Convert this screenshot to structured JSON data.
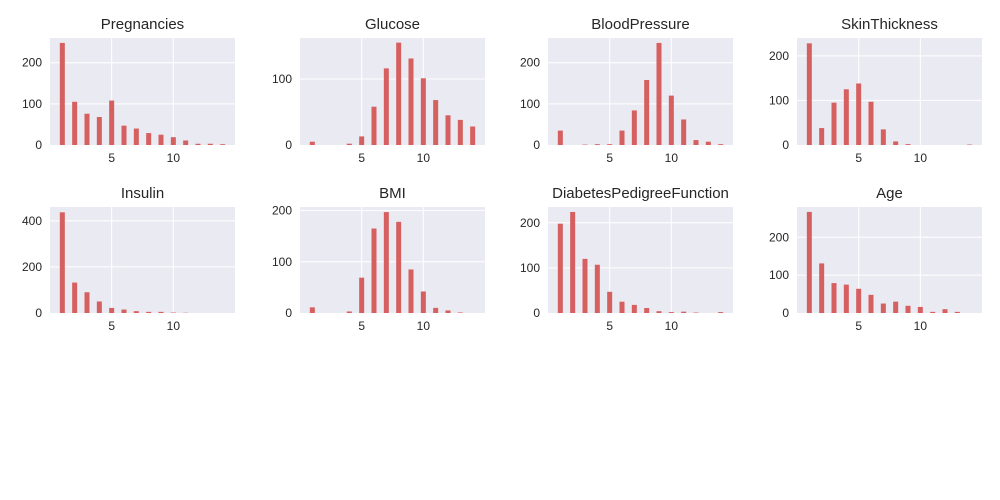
{
  "chart_data": [
    {
      "type": "bar",
      "title": "Pregnancies",
      "x": [
        1,
        2,
        3,
        4,
        5,
        6,
        7,
        8,
        9,
        10,
        11,
        12,
        13,
        14
      ],
      "values": [
        248,
        105,
        76,
        68,
        108,
        47,
        40,
        29,
        25,
        19,
        11,
        3,
        3,
        2
      ],
      "xlim": [
        0,
        15
      ],
      "ylim": [
        0,
        260
      ],
      "xticks": [
        5,
        10
      ],
      "yticks": [
        0,
        100,
        200
      ],
      "grid": true,
      "color": "#d65f5f"
    },
    {
      "type": "bar",
      "title": "Glucose",
      "x": [
        1,
        2,
        3,
        4,
        5,
        6,
        7,
        8,
        9,
        10,
        11,
        12,
        13,
        14
      ],
      "values": [
        5,
        0,
        0,
        2,
        13,
        58,
        116,
        155,
        131,
        101,
        68,
        45,
        38,
        28
      ],
      "xlim": [
        0,
        15
      ],
      "ylim": [
        0,
        162
      ],
      "xticks": [
        5,
        10
      ],
      "yticks": [
        0,
        100
      ],
      "grid": true,
      "color": "#d65f5f"
    },
    {
      "type": "bar",
      "title": "BloodPressure",
      "x": [
        1,
        2,
        3,
        4,
        5,
        6,
        7,
        8,
        9,
        10,
        11,
        12,
        13,
        14
      ],
      "values": [
        35,
        0,
        1,
        2,
        2,
        35,
        84,
        158,
        248,
        120,
        62,
        12,
        8,
        2
      ],
      "xlim": [
        0,
        15
      ],
      "ylim": [
        0,
        260
      ],
      "xticks": [
        5,
        10
      ],
      "yticks": [
        0,
        100,
        200
      ],
      "grid": true,
      "color": "#d65f5f"
    },
    {
      "type": "bar",
      "title": "SkinThickness",
      "x": [
        1,
        2,
        3,
        4,
        5,
        6,
        7,
        8,
        9,
        10,
        11,
        12,
        13,
        14
      ],
      "values": [
        228,
        38,
        95,
        125,
        138,
        97,
        35,
        8,
        2,
        0,
        0,
        0,
        0,
        1
      ],
      "xlim": [
        0,
        15
      ],
      "ylim": [
        0,
        240
      ],
      "xticks": [
        5,
        10
      ],
      "yticks": [
        0,
        100,
        200
      ],
      "grid": true,
      "color": "#d65f5f"
    },
    {
      "type": "bar",
      "title": "Insulin",
      "x": [
        1,
        2,
        3,
        4,
        5,
        6,
        7,
        8,
        9,
        10,
        11,
        12,
        13,
        14
      ],
      "values": [
        437,
        132,
        90,
        50,
        22,
        15,
        8,
        5,
        5,
        2,
        1,
        0,
        0,
        0
      ],
      "xlim": [
        0,
        15
      ],
      "ylim": [
        0,
        460
      ],
      "xticks": [
        5,
        10
      ],
      "yticks": [
        0,
        200,
        400
      ],
      "grid": true,
      "color": "#d65f5f"
    },
    {
      "type": "bar",
      "title": "BMI",
      "x": [
        1,
        2,
        3,
        4,
        5,
        6,
        7,
        8,
        9,
        10,
        11,
        12,
        13,
        14
      ],
      "values": [
        11,
        0,
        0,
        3,
        69,
        165,
        197,
        178,
        85,
        42,
        10,
        5,
        1,
        0
      ],
      "xlim": [
        0,
        15
      ],
      "ylim": [
        0,
        207
      ],
      "xticks": [
        5,
        10
      ],
      "yticks": [
        0,
        100,
        200
      ],
      "grid": true,
      "color": "#d65f5f"
    },
    {
      "type": "bar",
      "title": "DiabetesPedigreeFunction",
      "x": [
        1,
        2,
        3,
        4,
        5,
        6,
        7,
        8,
        9,
        10,
        11,
        12,
        13,
        14
      ],
      "values": [
        198,
        224,
        120,
        107,
        47,
        25,
        18,
        11,
        4,
        2,
        3,
        1,
        0,
        2
      ],
      "xlim": [
        0,
        15
      ],
      "ylim": [
        0,
        235
      ],
      "xticks": [
        5,
        10
      ],
      "yticks": [
        0,
        100,
        200
      ],
      "grid": true,
      "color": "#d65f5f"
    },
    {
      "type": "bar",
      "title": "Age",
      "x": [
        1,
        2,
        3,
        4,
        5,
        6,
        7,
        8,
        9,
        10,
        11,
        12,
        13,
        14
      ],
      "values": [
        267,
        131,
        79,
        75,
        64,
        48,
        25,
        30,
        19,
        16,
        3,
        10,
        3,
        0
      ],
      "xlim": [
        0,
        15
      ],
      "ylim": [
        0,
        280
      ],
      "xticks": [
        5,
        10
      ],
      "yticks": [
        0,
        100,
        200
      ],
      "grid": true,
      "color": "#d65f5f"
    }
  ],
  "style": {
    "background": "#ffffff",
    "panel_background": "#eaeaf2",
    "grid_color": "#ffffff",
    "text_color": "#262626"
  }
}
